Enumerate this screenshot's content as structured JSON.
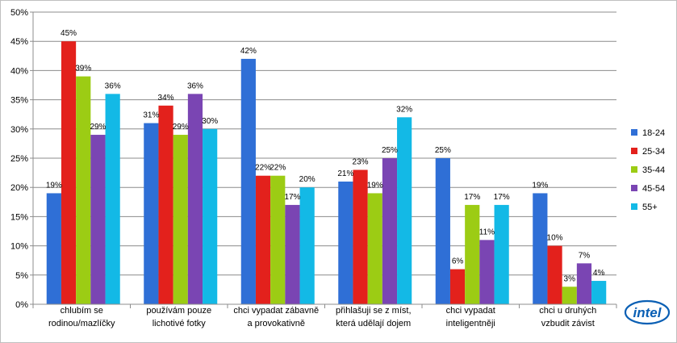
{
  "chart_data": {
    "type": "bar",
    "categories": [
      [
        "chlubím se",
        "rodinou/mazlíčky"
      ],
      [
        "používám pouze",
        "lichotivé fotky"
      ],
      [
        "chci vypadat zábavně",
        "a provokativně"
      ],
      [
        "přihlašuji se z míst,",
        "která udělají dojem"
      ],
      [
        "chci vypadat",
        "inteligentněji"
      ],
      [
        "chci u druhých",
        "vzbudit závist"
      ]
    ],
    "series": [
      {
        "name": "18-24",
        "color": "#2f6fd6",
        "values": [
          19,
          31,
          42,
          21,
          25,
          19
        ]
      },
      {
        "name": "25-34",
        "color": "#e3211c",
        "values": [
          45,
          34,
          22,
          23,
          6,
          10
        ]
      },
      {
        "name": "35-44",
        "color": "#9ccc14",
        "values": [
          39,
          29,
          22,
          19,
          17,
          3
        ]
      },
      {
        "name": "45-54",
        "color": "#7a45b3",
        "values": [
          29,
          36,
          17,
          25,
          11,
          7
        ]
      },
      {
        "name": "55+",
        "color": "#13b9e6",
        "values": [
          36,
          30,
          20,
          32,
          17,
          4
        ]
      }
    ],
    "ylim": [
      0,
      50
    ],
    "ytick_step": 5,
    "value_suffix": "%",
    "grid": true,
    "legend": "right"
  },
  "brand": {
    "logo_text": "intel",
    "color": "#0a5fb4"
  }
}
